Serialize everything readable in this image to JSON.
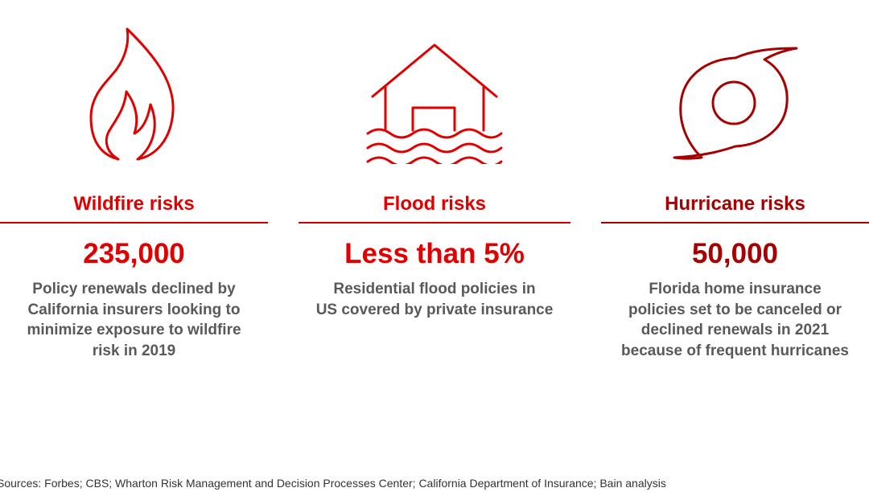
{
  "colors": {
    "primary_red": "#e00000",
    "dark_red": "#a60000",
    "rule": "#cc0000",
    "body_text": "#595959"
  },
  "panels": [
    {
      "icon": "flame-icon",
      "title": "Wildfire risks",
      "stat": "235,000",
      "description_lines": [
        "Policy renewals declined by",
        "California insurers looking to",
        "minimize exposure to wildfire",
        "risk in 2019"
      ]
    },
    {
      "icon": "flooded-house-icon",
      "title": "Flood risks",
      "stat": "Less than 5%",
      "description_lines": [
        "Residential flood policies in",
        "US covered by private insurance"
      ]
    },
    {
      "icon": "hurricane-icon",
      "title": "Hurricane risks",
      "stat": "50,000",
      "description_lines": [
        "Florida home insurance",
        "policies set to be canceled or",
        "declined renewals in 2021",
        "because of frequent hurricanes"
      ]
    }
  ],
  "sources": "Sources: Forbes; CBS; Wharton Risk Management and Decision Processes Center; California Department of Insurance; Bain analysis"
}
